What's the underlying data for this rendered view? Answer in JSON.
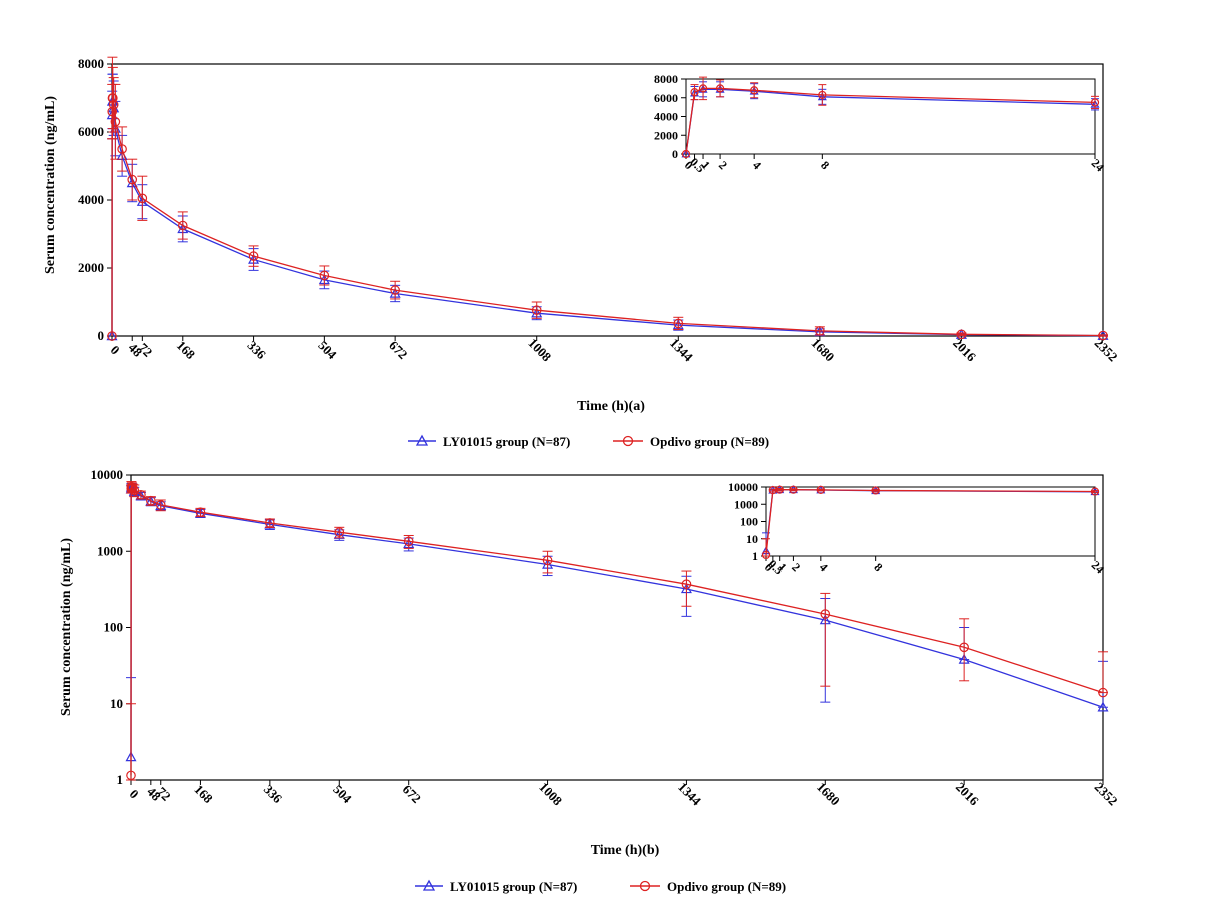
{
  "colors": {
    "ly01015": "#3333dd",
    "opdivo": "#dd2222",
    "axis": "#000000",
    "background": "#ffffff"
  },
  "legend": {
    "series1": "LY01015 group (N=87)",
    "series2": "Opdivo group (N=89)"
  },
  "chart_data": [
    {
      "id": "a",
      "type": "line",
      "scale": "linear",
      "xlabel": "Time (h)(a)",
      "ylabel": "Serum concentration (ng/mL)",
      "xlim": [
        0,
        2352
      ],
      "ylim": [
        0,
        8000
      ],
      "xticks": [
        0,
        48,
        72,
        168,
        336,
        504,
        672,
        1008,
        1344,
        1680,
        2016,
        2352
      ],
      "xtick_labels": [
        "0",
        "48",
        "72",
        "168",
        "336",
        "504",
        "672",
        "1008",
        "1344",
        "1680",
        "2016",
        "2352"
      ],
      "yticks": [
        0,
        2000,
        4000,
        6000,
        8000
      ],
      "ytick_labels": [
        "0",
        "2000",
        "4000",
        "6000",
        "8000"
      ],
      "x": [
        0,
        0.5,
        1,
        2,
        4,
        8,
        24,
        48,
        72,
        168,
        336,
        504,
        672,
        1008,
        1344,
        1680,
        2016,
        2352
      ],
      "series": [
        {
          "name": "LY01015 group (N=87)",
          "marker": "triangle",
          "values": [
            0,
            6500,
            6900,
            6900,
            6700,
            6100,
            5300,
            4500,
            3950,
            3150,
            2250,
            1650,
            1250,
            670,
            320,
            120,
            40,
            10
          ],
          "err": [
            0,
            700,
            800,
            800,
            800,
            800,
            600,
            550,
            500,
            380,
            320,
            260,
            240,
            190,
            150,
            90,
            30,
            10
          ]
        },
        {
          "name": "Opdivo group (N=89)",
          "marker": "circle",
          "values": [
            0,
            6600,
            7000,
            7000,
            6800,
            6300,
            5500,
            4600,
            4050,
            3250,
            2350,
            1780,
            1350,
            760,
            370,
            150,
            50,
            15
          ],
          "err": [
            0,
            800,
            1200,
            900,
            800,
            1100,
            650,
            600,
            650,
            400,
            300,
            280,
            260,
            240,
            180,
            120,
            40,
            20
          ]
        }
      ],
      "inset": {
        "xlim": [
          0,
          24
        ],
        "ylim": [
          0,
          8000
        ],
        "xticks": [
          0,
          0.5,
          1,
          2,
          4,
          8,
          24
        ],
        "xtick_labels": [
          "0",
          "0.5",
          "1",
          "2",
          "4",
          "8",
          "24"
        ],
        "yticks": [
          0,
          2000,
          4000,
          6000,
          8000
        ],
        "ytick_labels": [
          "0",
          "2000",
          "4000",
          "6000",
          "8000"
        ]
      }
    },
    {
      "id": "b",
      "type": "line",
      "scale": "log",
      "xlabel": "Time (h)(b)",
      "ylabel": "Serum concentration (ng/mL)",
      "xlim": [
        0,
        2352
      ],
      "ylim": [
        1,
        10000
      ],
      "xticks": [
        0,
        48,
        72,
        168,
        336,
        504,
        672,
        1008,
        1344,
        1680,
        2016,
        2352
      ],
      "xtick_labels": [
        "0",
        "48",
        "72",
        "168",
        "336",
        "504",
        "672",
        "1008",
        "1344",
        "1680",
        "2016",
        "2352"
      ],
      "yticks": [
        1,
        10,
        100,
        1000,
        10000
      ],
      "ytick_labels": [
        "1",
        "10",
        "100",
        "1000",
        "10000"
      ],
      "x": [
        0,
        0.5,
        1,
        2,
        4,
        8,
        24,
        48,
        72,
        168,
        336,
        504,
        672,
        1008,
        1344,
        1680,
        2016,
        2352
      ],
      "series": [
        {
          "name": "LY01015 group (N=87)",
          "marker": "triangle",
          "values": [
            2,
            6500,
            6900,
            6900,
            6700,
            6100,
            5300,
            4500,
            3950,
            3150,
            2250,
            1650,
            1250,
            670,
            320,
            125,
            38,
            9
          ],
          "lo": [
            1,
            5800,
            6100,
            6100,
            5900,
            5300,
            4700,
            3950,
            3450,
            2770,
            1930,
            1390,
            1010,
            480,
            140,
            10.5,
            38,
            9
          ],
          "hi": [
            22,
            7200,
            7700,
            7700,
            7500,
            6900,
            5900,
            5050,
            4450,
            3530,
            2570,
            1910,
            1490,
            860,
            470,
            240,
            100,
            36
          ]
        },
        {
          "name": "Opdivo group (N=89)",
          "marker": "circle",
          "values": [
            1.15,
            6600,
            7000,
            7000,
            6800,
            6300,
            5500,
            4600,
            4050,
            3250,
            2350,
            1780,
            1350,
            760,
            370,
            150,
            55,
            14
          ],
          "lo": [
            1,
            5800,
            5800,
            6100,
            6000,
            5200,
            4850,
            4000,
            3400,
            2850,
            2050,
            1500,
            1090,
            520,
            190,
            17,
            20,
            14
          ],
          "hi": [
            10,
            7400,
            8200,
            7900,
            7600,
            7400,
            6150,
            5200,
            4700,
            3650,
            2650,
            2060,
            1610,
            1000,
            550,
            280,
            130,
            48
          ]
        }
      ],
      "inset": {
        "xlim": [
          0,
          24
        ],
        "ylim": [
          1,
          10000
        ],
        "xticks": [
          0,
          0.5,
          1,
          2,
          4,
          8,
          24
        ],
        "xtick_labels": [
          "0",
          "0.5",
          "1",
          "2",
          "4",
          "8",
          "24"
        ],
        "yticks": [
          1,
          10,
          100,
          1000,
          10000
        ],
        "ytick_labels": [
          "1",
          "10",
          "100",
          "1000",
          "10000"
        ]
      }
    }
  ]
}
